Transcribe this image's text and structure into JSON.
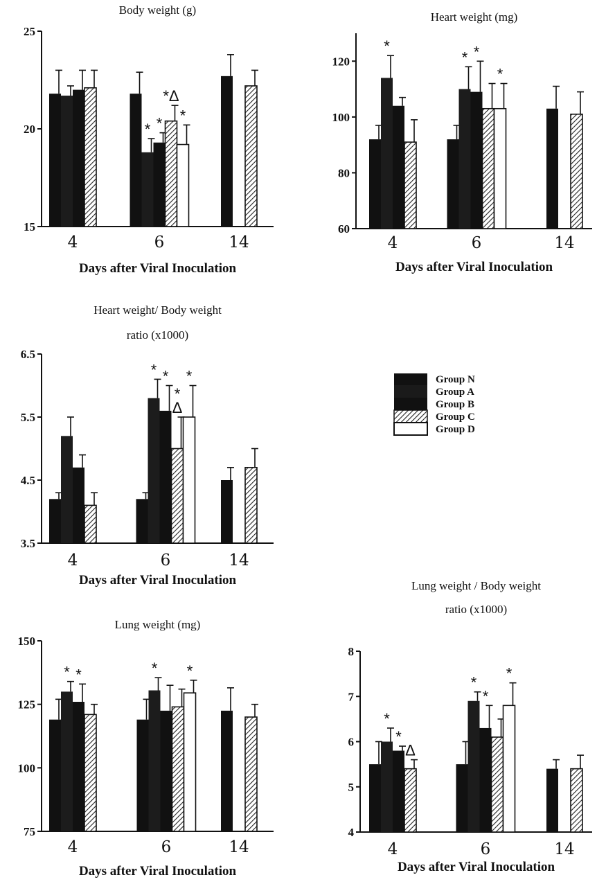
{
  "x_axis_label": "Days after Viral Inoculation",
  "legend": {
    "entries": [
      "Group N",
      "Group A",
      "Group B",
      "Group C",
      "Group D"
    ]
  },
  "chart_data": [
    {
      "type": "bar",
      "title_lines": [
        "Body weight (g)"
      ],
      "xlabel": "Days after Viral Inoculation",
      "categories": [
        "4",
        "6",
        "14"
      ],
      "ylim": [
        15,
        25
      ],
      "yticks": [
        "15",
        "20",
        "25"
      ],
      "series": [
        {
          "name": "Group N",
          "values": [
            21.8,
            21.8,
            22.7
          ],
          "errors": [
            1.2,
            1.1,
            1.1
          ]
        },
        {
          "name": "Group A",
          "values": [
            21.7,
            18.8,
            null
          ],
          "errors": [
            0.5,
            0.7,
            null
          ]
        },
        {
          "name": "Group B",
          "values": [
            22.0,
            19.3,
            null
          ],
          "errors": [
            1.0,
            0.5,
            null
          ]
        },
        {
          "name": "Group C",
          "values": [
            22.1,
            20.4,
            22.2
          ],
          "errors": [
            0.9,
            0.8,
            0.8
          ]
        },
        {
          "name": "Group D",
          "values": [
            null,
            19.2,
            null
          ],
          "errors": [
            null,
            1.0,
            null
          ]
        }
      ],
      "annotations": [
        {
          "category": "6",
          "series": "Group A",
          "text": "*"
        },
        {
          "category": "6",
          "series": "Group B",
          "text": "*"
        },
        {
          "category": "6",
          "series": "Group C",
          "text": "*Δ"
        },
        {
          "category": "6",
          "series": "Group D",
          "text": "*"
        }
      ]
    },
    {
      "type": "bar",
      "title_lines": [
        "Heart weight (mg)"
      ],
      "xlabel": "Days after Viral Inoculation",
      "categories": [
        "4",
        "6",
        "14"
      ],
      "ylim": [
        60,
        130
      ],
      "yticks": [
        "60",
        "80",
        "100",
        "120"
      ],
      "series": [
        {
          "name": "Group N",
          "values": [
            92,
            92,
            103
          ],
          "errors": [
            5,
            5,
            8
          ]
        },
        {
          "name": "Group A",
          "values": [
            114,
            110,
            null
          ],
          "errors": [
            8,
            8,
            null
          ]
        },
        {
          "name": "Group B",
          "values": [
            104,
            109,
            null
          ],
          "errors": [
            3,
            11,
            null
          ]
        },
        {
          "name": "Group C",
          "values": [
            91,
            103,
            101
          ],
          "errors": [
            8,
            9,
            8
          ]
        },
        {
          "name": "Group D",
          "values": [
            null,
            103,
            null
          ],
          "errors": [
            null,
            9,
            null
          ]
        }
      ],
      "annotations": [
        {
          "category": "4",
          "series": "Group A",
          "text": "*"
        },
        {
          "category": "6",
          "series": "Group A",
          "text": "*"
        },
        {
          "category": "6",
          "series": "Group B",
          "text": "*"
        },
        {
          "category": "6",
          "series": "Group D",
          "text": "*"
        }
      ]
    },
    {
      "type": "bar",
      "title_lines": [
        "Heart weight/ Body weight",
        "ratio (x1000)"
      ],
      "xlabel": "Days after Viral Inoculation",
      "categories": [
        "4",
        "6",
        "14"
      ],
      "ylim": [
        3.5,
        6.5
      ],
      "yticks": [
        "3.5",
        "4.5",
        "5.5",
        "6.5"
      ],
      "series": [
        {
          "name": "Group N",
          "values": [
            4.2,
            4.2,
            4.5
          ],
          "errors": [
            0.1,
            0.1,
            0.2
          ]
        },
        {
          "name": "Group A",
          "values": [
            5.2,
            5.8,
            null
          ],
          "errors": [
            0.3,
            0.3,
            null
          ]
        },
        {
          "name": "Group B",
          "values": [
            4.7,
            5.6,
            null
          ],
          "errors": [
            0.2,
            0.4,
            null
          ]
        },
        {
          "name": "Group C",
          "values": [
            4.1,
            5.0,
            4.7
          ],
          "errors": [
            0.2,
            0.5,
            0.3
          ]
        },
        {
          "name": "Group D",
          "values": [
            null,
            5.5,
            null
          ],
          "errors": [
            null,
            0.5,
            null
          ]
        }
      ],
      "annotations": [
        {
          "category": "6",
          "series": "Group A",
          "text": "*"
        },
        {
          "category": "6",
          "series": "Group B",
          "text": "*"
        },
        {
          "category": "6",
          "series": "Group C",
          "text": "Δ"
        },
        {
          "category": "6",
          "series": "Group C",
          "text": "*"
        },
        {
          "category": "6",
          "series": "Group D",
          "text": "*"
        }
      ]
    },
    {
      "type": "bar",
      "title_lines": [
        "Lung weight (mg)"
      ],
      "xlabel": "Days after Viral Inoculation",
      "categories": [
        "4",
        "6",
        "14"
      ],
      "ylim": [
        75,
        150
      ],
      "yticks": [
        "75",
        "100",
        "125",
        "150"
      ],
      "series": [
        {
          "name": "Group N",
          "values": [
            119,
            119,
            122.5
          ],
          "errors": [
            8,
            8,
            9
          ]
        },
        {
          "name": "Group A",
          "values": [
            130,
            130.5,
            null
          ],
          "errors": [
            4,
            5,
            null
          ]
        },
        {
          "name": "Group B",
          "values": [
            126,
            122.5,
            null
          ],
          "errors": [
            7,
            10,
            null
          ]
        },
        {
          "name": "Group C",
          "values": [
            121,
            124,
            120
          ],
          "errors": [
            4,
            7,
            5
          ]
        },
        {
          "name": "Group D",
          "values": [
            null,
            129.5,
            null
          ],
          "errors": [
            null,
            5,
            null
          ]
        }
      ],
      "annotations": [
        {
          "category": "4",
          "series": "Group A",
          "text": "*"
        },
        {
          "category": "4",
          "series": "Group B",
          "text": "*"
        },
        {
          "category": "6",
          "series": "Group A",
          "text": "*"
        },
        {
          "category": "6",
          "series": "Group D",
          "text": "*"
        }
      ]
    },
    {
      "type": "bar",
      "title_lines": [
        "Lung weight / Body weight",
        "ratio (x1000)"
      ],
      "xlabel": "Days after Viral Inoculation",
      "categories": [
        "4",
        "6",
        "14"
      ],
      "ylim": [
        4,
        8
      ],
      "yticks": [
        "4",
        "5",
        "6",
        "7",
        "8"
      ],
      "series": [
        {
          "name": "Group N",
          "values": [
            5.5,
            5.5,
            5.4
          ],
          "errors": [
            0.5,
            0.5,
            0.2
          ]
        },
        {
          "name": "Group A",
          "values": [
            6.0,
            6.9,
            null
          ],
          "errors": [
            0.3,
            0.2,
            null
          ]
        },
        {
          "name": "Group B",
          "values": [
            5.8,
            6.3,
            null
          ],
          "errors": [
            0.1,
            0.5,
            null
          ]
        },
        {
          "name": "Group C",
          "values": [
            5.4,
            6.1,
            5.4
          ],
          "errors": [
            0.2,
            0.4,
            0.3
          ]
        },
        {
          "name": "Group D",
          "values": [
            null,
            6.8,
            null
          ],
          "errors": [
            null,
            0.5,
            null
          ]
        }
      ],
      "annotations": [
        {
          "category": "4",
          "series": "Group A",
          "text": "*"
        },
        {
          "category": "4",
          "series": "Group B",
          "text": "*"
        },
        {
          "category": "4",
          "series": "Group C",
          "text": "Δ"
        },
        {
          "category": "6",
          "series": "Group A",
          "text": "*"
        },
        {
          "category": "6",
          "series": "Group B",
          "text": "*"
        },
        {
          "category": "6",
          "series": "Group D",
          "text": "*"
        }
      ]
    }
  ]
}
